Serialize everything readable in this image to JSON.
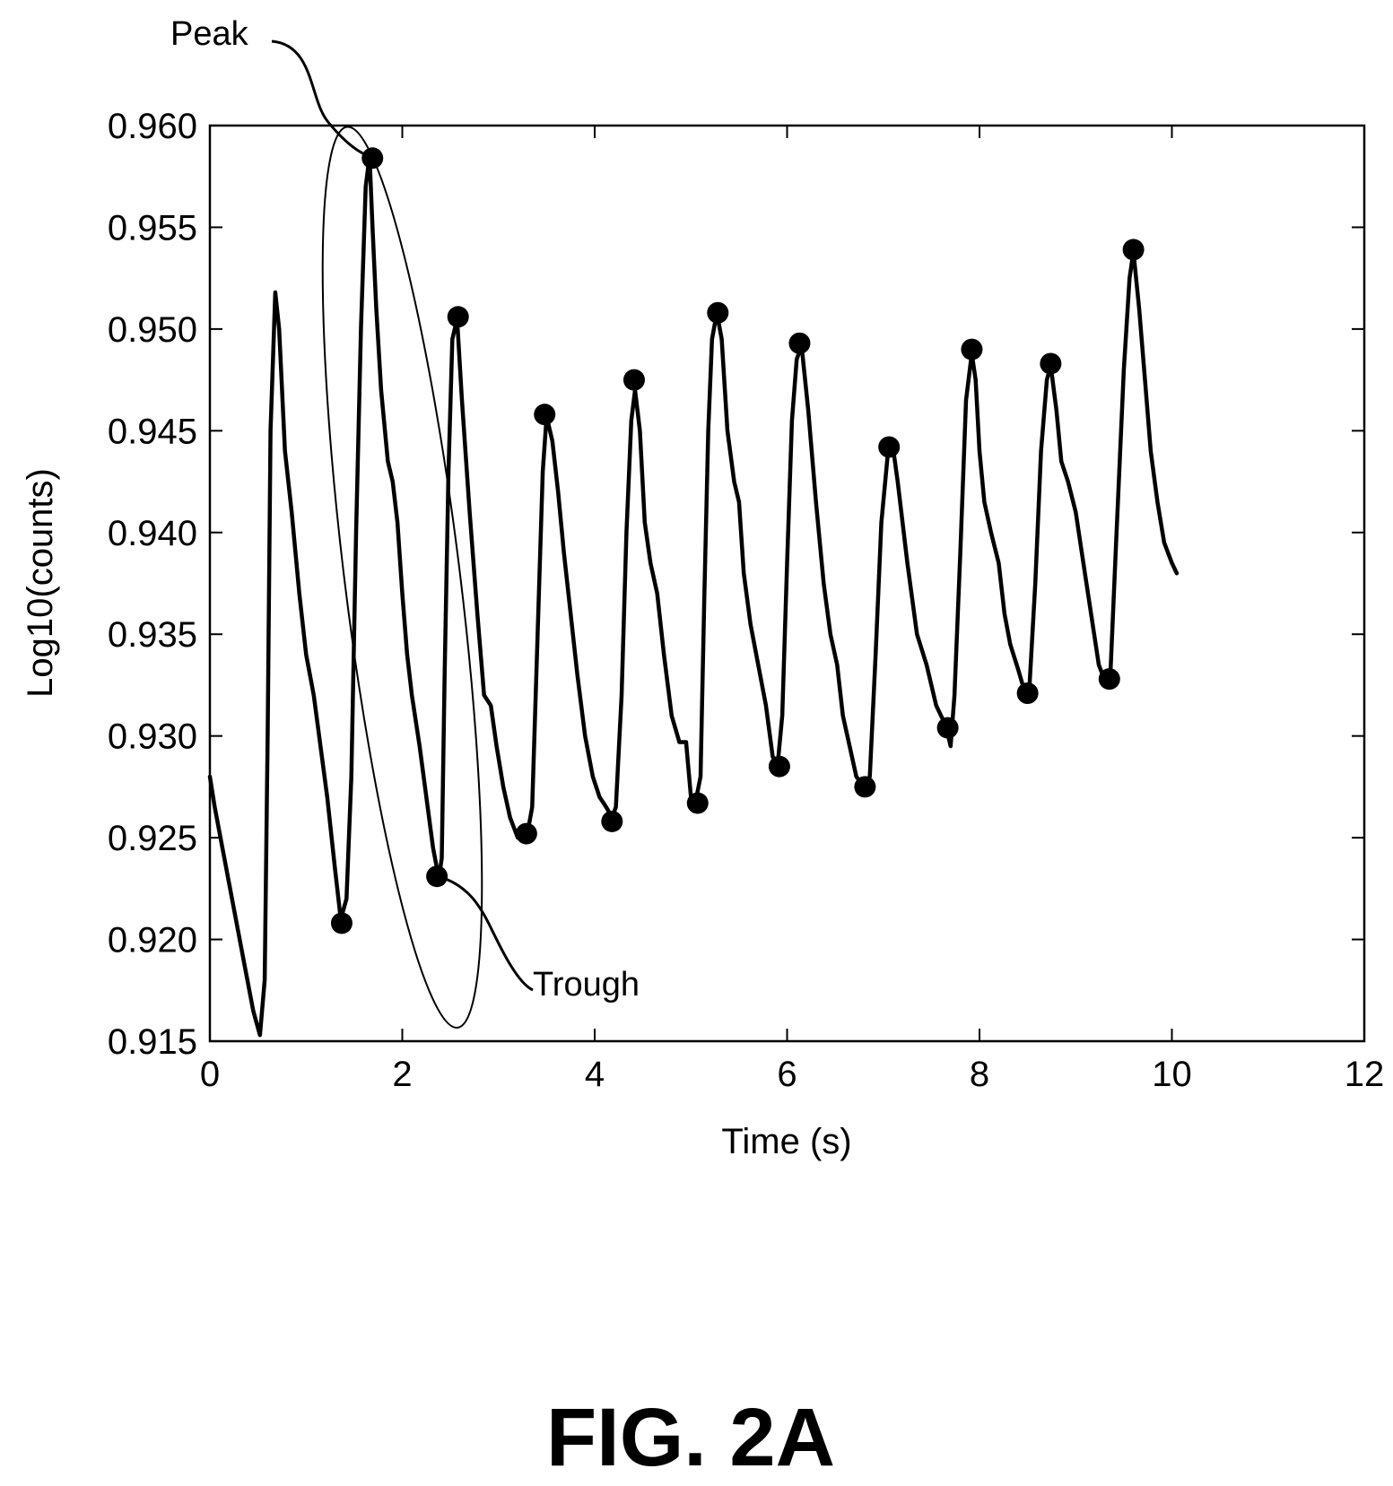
{
  "chart_data": {
    "type": "line",
    "title": "",
    "xlabel": "Time (s)",
    "ylabel": "Log10(counts)",
    "xlim": [
      0,
      12
    ],
    "ylim": [
      0.915,
      0.96
    ],
    "xticks": [
      0,
      2,
      4,
      6,
      8,
      10,
      12
    ],
    "xtick_labels": [
      "0",
      "2",
      "4",
      "6",
      "8",
      "10",
      "12"
    ],
    "yticks": [
      0.915,
      0.92,
      0.925,
      0.93,
      0.935,
      0.94,
      0.945,
      0.95,
      0.955,
      0.96
    ],
    "ytick_labels": [
      "0.915",
      "0.920",
      "0.925",
      "0.930",
      "0.935",
      "0.940",
      "0.945",
      "0.950",
      "0.955",
      "0.960"
    ],
    "grid": false,
    "series": [
      {
        "points": [
          [
            0.0,
            0.928
          ],
          [
            0.05,
            0.9265
          ],
          [
            0.15,
            0.924
          ],
          [
            0.25,
            0.9215
          ],
          [
            0.35,
            0.919
          ],
          [
            0.45,
            0.9165
          ],
          [
            0.52,
            0.9153
          ],
          [
            0.57,
            0.918
          ],
          [
            0.6,
            0.93
          ],
          [
            0.63,
            0.945
          ],
          [
            0.68,
            0.9518
          ],
          [
            0.72,
            0.95
          ],
          [
            0.78,
            0.944
          ],
          [
            0.85,
            0.941
          ],
          [
            0.93,
            0.937
          ],
          [
            1.0,
            0.934
          ],
          [
            1.08,
            0.932
          ],
          [
            1.15,
            0.9295
          ],
          [
            1.22,
            0.927
          ],
          [
            1.3,
            0.9235
          ],
          [
            1.36,
            0.921
          ],
          [
            1.42,
            0.922
          ],
          [
            1.47,
            0.928
          ],
          [
            1.52,
            0.94
          ],
          [
            1.57,
            0.95
          ],
          [
            1.62,
            0.957
          ],
          [
            1.66,
            0.9585
          ],
          [
            1.69,
            0.955
          ],
          [
            1.73,
            0.951
          ],
          [
            1.78,
            0.947
          ],
          [
            1.85,
            0.9435
          ],
          [
            1.9,
            0.9425
          ],
          [
            1.95,
            0.9405
          ],
          [
            2.0,
            0.937
          ],
          [
            2.05,
            0.934
          ],
          [
            2.1,
            0.932
          ],
          [
            2.18,
            0.9295
          ],
          [
            2.25,
            0.927
          ],
          [
            2.32,
            0.9245
          ],
          [
            2.38,
            0.923
          ],
          [
            2.41,
            0.924
          ],
          [
            2.44,
            0.933
          ],
          [
            2.48,
            0.943
          ],
          [
            2.52,
            0.9495
          ],
          [
            2.57,
            0.9505
          ],
          [
            2.62,
            0.9465
          ],
          [
            2.7,
            0.941
          ],
          [
            2.78,
            0.936
          ],
          [
            2.85,
            0.932
          ],
          [
            2.92,
            0.9315
          ],
          [
            2.98,
            0.9295
          ],
          [
            3.05,
            0.9275
          ],
          [
            3.12,
            0.926
          ],
          [
            3.2,
            0.925
          ],
          [
            3.3,
            0.9252
          ],
          [
            3.35,
            0.9265
          ],
          [
            3.42,
            0.937
          ],
          [
            3.46,
            0.943
          ],
          [
            3.5,
            0.9457
          ],
          [
            3.56,
            0.9445
          ],
          [
            3.62,
            0.942
          ],
          [
            3.68,
            0.939
          ],
          [
            3.75,
            0.936
          ],
          [
            3.82,
            0.933
          ],
          [
            3.9,
            0.93
          ],
          [
            3.98,
            0.928
          ],
          [
            4.05,
            0.927
          ],
          [
            4.12,
            0.9265
          ],
          [
            4.18,
            0.926
          ],
          [
            4.22,
            0.9265
          ],
          [
            4.28,
            0.932
          ],
          [
            4.33,
            0.94
          ],
          [
            4.38,
            0.9455
          ],
          [
            4.42,
            0.947
          ],
          [
            4.47,
            0.945
          ],
          [
            4.52,
            0.9405
          ],
          [
            4.58,
            0.9385
          ],
          [
            4.65,
            0.937
          ],
          [
            4.72,
            0.934
          ],
          [
            4.8,
            0.931
          ],
          [
            4.88,
            0.9297
          ],
          [
            4.95,
            0.9297
          ],
          [
            5.0,
            0.927
          ],
          [
            5.05,
            0.9268
          ],
          [
            5.1,
            0.928
          ],
          [
            5.14,
            0.937
          ],
          [
            5.18,
            0.945
          ],
          [
            5.22,
            0.9495
          ],
          [
            5.27,
            0.9508
          ],
          [
            5.32,
            0.9495
          ],
          [
            5.38,
            0.945
          ],
          [
            5.45,
            0.9425
          ],
          [
            5.5,
            0.9415
          ],
          [
            5.55,
            0.938
          ],
          [
            5.62,
            0.9355
          ],
          [
            5.7,
            0.9335
          ],
          [
            5.78,
            0.9315
          ],
          [
            5.85,
            0.929
          ],
          [
            5.9,
            0.9285
          ],
          [
            5.95,
            0.931
          ],
          [
            6.0,
            0.9385
          ],
          [
            6.05,
            0.9455
          ],
          [
            6.1,
            0.9485
          ],
          [
            6.15,
            0.9492
          ],
          [
            6.22,
            0.946
          ],
          [
            6.3,
            0.9415
          ],
          [
            6.38,
            0.9375
          ],
          [
            6.45,
            0.935
          ],
          [
            6.52,
            0.9335
          ],
          [
            6.58,
            0.931
          ],
          [
            6.65,
            0.9295
          ],
          [
            6.72,
            0.928
          ],
          [
            6.8,
            0.9275
          ],
          [
            6.86,
            0.928
          ],
          [
            6.92,
            0.934
          ],
          [
            6.98,
            0.9405
          ],
          [
            7.05,
            0.944
          ],
          [
            7.1,
            0.9442
          ],
          [
            7.15,
            0.9425
          ],
          [
            7.25,
            0.9385
          ],
          [
            7.35,
            0.935
          ],
          [
            7.45,
            0.9335
          ],
          [
            7.55,
            0.9315
          ],
          [
            7.65,
            0.9305
          ],
          [
            7.7,
            0.9295
          ],
          [
            7.74,
            0.932
          ],
          [
            7.8,
            0.939
          ],
          [
            7.86,
            0.9465
          ],
          [
            7.92,
            0.9488
          ],
          [
            7.96,
            0.9475
          ],
          [
            8.0,
            0.944
          ],
          [
            8.05,
            0.9415
          ],
          [
            8.12,
            0.94
          ],
          [
            8.2,
            0.9385
          ],
          [
            8.26,
            0.936
          ],
          [
            8.32,
            0.9345
          ],
          [
            8.4,
            0.9333
          ],
          [
            8.48,
            0.932
          ],
          [
            8.52,
            0.9325
          ],
          [
            8.58,
            0.9375
          ],
          [
            8.64,
            0.944
          ],
          [
            8.7,
            0.9475
          ],
          [
            8.74,
            0.9482
          ],
          [
            8.8,
            0.946
          ],
          [
            8.85,
            0.9435
          ],
          [
            8.92,
            0.9425
          ],
          [
            9.0,
            0.941
          ],
          [
            9.08,
            0.9385
          ],
          [
            9.16,
            0.936
          ],
          [
            9.24,
            0.9335
          ],
          [
            9.32,
            0.9325
          ],
          [
            9.36,
            0.933
          ],
          [
            9.42,
            0.9395
          ],
          [
            9.5,
            0.948
          ],
          [
            9.56,
            0.9525
          ],
          [
            9.6,
            0.9538
          ],
          [
            9.66,
            0.951
          ],
          [
            9.72,
            0.9475
          ],
          [
            9.78,
            0.944
          ],
          [
            9.85,
            0.9415
          ],
          [
            9.92,
            0.9395
          ],
          [
            10.0,
            0.9385
          ],
          [
            10.05,
            0.938
          ]
        ]
      }
    ],
    "peaks": [
      [
        1.69,
        0.9584
      ],
      [
        2.58,
        0.9506
      ],
      [
        3.48,
        0.9458
      ],
      [
        4.41,
        0.9475
      ],
      [
        5.28,
        0.9508
      ],
      [
        6.13,
        0.9493
      ],
      [
        7.06,
        0.9442
      ],
      [
        7.92,
        0.949
      ],
      [
        8.74,
        0.9483
      ],
      [
        9.6,
        0.9539
      ]
    ],
    "troughs": [
      [
        1.37,
        0.9208
      ],
      [
        2.36,
        0.9231
      ],
      [
        3.29,
        0.9252
      ],
      [
        4.18,
        0.9258
      ],
      [
        5.07,
        0.9267
      ],
      [
        5.92,
        0.9285
      ],
      [
        6.81,
        0.9275
      ],
      [
        7.67,
        0.9304
      ],
      [
        8.5,
        0.9321
      ],
      [
        9.35,
        0.9328
      ]
    ],
    "highlight_ellipse": {
      "center": [
        2.0,
        0.9378
      ],
      "rx": 0.6,
      "ry": 0.0223
    },
    "annotations": [
      {
        "text": "Peak",
        "target": [
          1.69,
          0.9584
        ]
      },
      {
        "text": "Trough",
        "target": [
          2.36,
          0.9231
        ]
      }
    ]
  },
  "caption": "FIG. 2A",
  "colors": {
    "line": "#000000",
    "marker": "#000000",
    "background": "#ffffff"
  }
}
